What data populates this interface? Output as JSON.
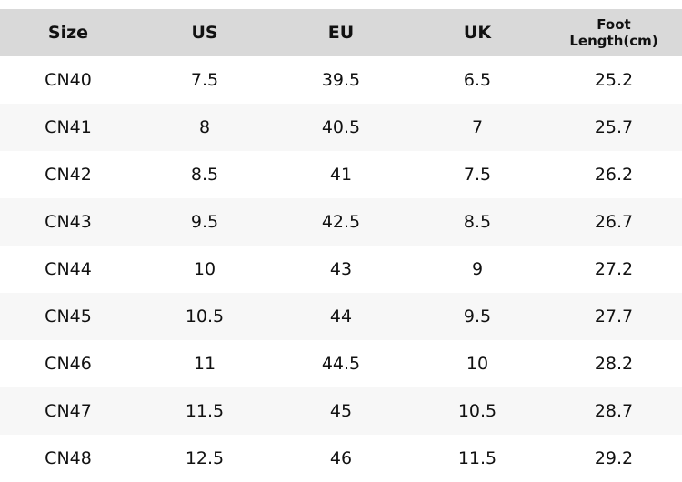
{
  "table": {
    "header": [
      "Size",
      "US",
      "EU",
      "UK",
      "Foot Length(cm)"
    ],
    "rows": [
      [
        "CN40",
        "7.5",
        "39.5",
        "6.5",
        "25.2"
      ],
      [
        "CN41",
        "8",
        "40.5",
        "7",
        "25.7"
      ],
      [
        "CN42",
        "8.5",
        "41",
        "7.5",
        "26.2"
      ],
      [
        "CN43",
        "9.5",
        "42.5",
        "8.5",
        "26.7"
      ],
      [
        "CN44",
        "10",
        "43",
        "9",
        "27.2"
      ],
      [
        "CN45",
        "10.5",
        "44",
        "9.5",
        "27.7"
      ],
      [
        "CN46",
        "11",
        "44.5",
        "10",
        "28.2"
      ],
      [
        "CN47",
        "11.5",
        "45",
        "10.5",
        "28.7"
      ],
      [
        "CN48",
        "12.5",
        "46",
        "11.5",
        "29.2"
      ]
    ]
  }
}
